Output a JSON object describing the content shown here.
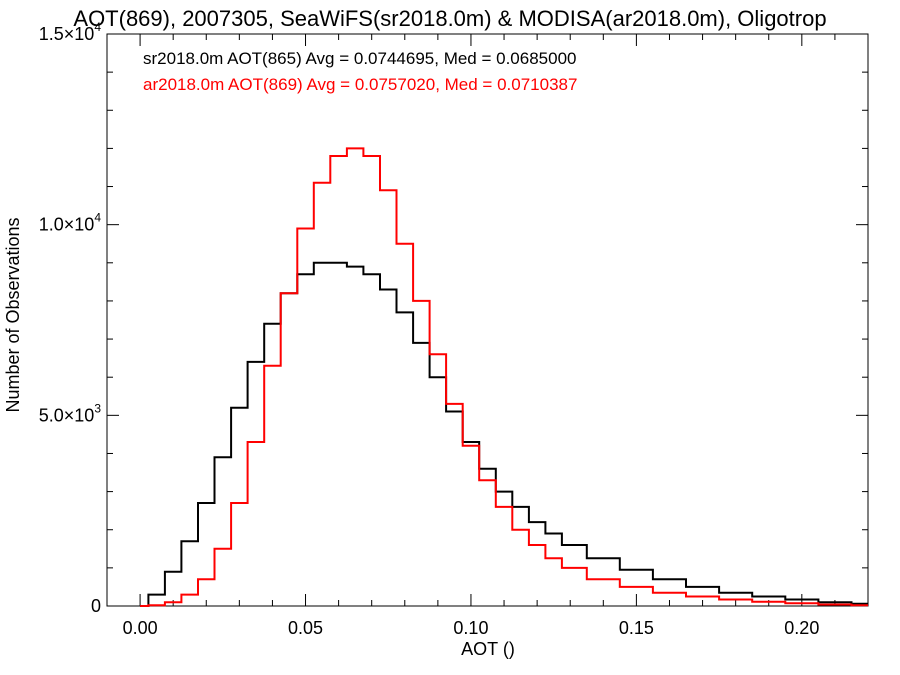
{
  "chart_data": {
    "type": "line",
    "title": "AOT(869), 2007305, SeaWiFS(sr2018.0m) & MODISA(ar2018.0m), Oligotrop",
    "xlabel": "AOT ()",
    "ylabel": "Number of Observations",
    "xlim": [
      -0.01,
      0.22
    ],
    "ylim": [
      0,
      15000
    ],
    "x_ticks": [
      {
        "value": 0.0,
        "label": "0.00"
      },
      {
        "value": 0.05,
        "label": "0.05"
      },
      {
        "value": 0.1,
        "label": "0.10"
      },
      {
        "value": 0.15,
        "label": "0.15"
      },
      {
        "value": 0.2,
        "label": "0.20"
      }
    ],
    "y_ticks": [
      {
        "value": 0,
        "label": "0",
        "exp": ""
      },
      {
        "value": 5000,
        "label": "5.0×10",
        "exp": "3"
      },
      {
        "value": 10000,
        "label": "1.0×10",
        "exp": "4"
      },
      {
        "value": 15000,
        "label": "1.5×10",
        "exp": "4"
      }
    ],
    "grid": false,
    "legend_position": "top-left",
    "series": [
      {
        "name": "sr2018.0m AOT(865) Avg = 0.0744695, Med = 0.0685000",
        "color": "#000000",
        "x": [
          0.0,
          0.005,
          0.01,
          0.015,
          0.02,
          0.025,
          0.03,
          0.035,
          0.04,
          0.045,
          0.05,
          0.055,
          0.06,
          0.065,
          0.07,
          0.075,
          0.08,
          0.085,
          0.09,
          0.095,
          0.1,
          0.105,
          0.11,
          0.115,
          0.12,
          0.125,
          0.13,
          0.14,
          0.15,
          0.16,
          0.17,
          0.18,
          0.19,
          0.2,
          0.21,
          0.22
        ],
        "values": [
          0,
          300,
          900,
          1700,
          2700,
          3900,
          5200,
          6400,
          7400,
          8200,
          8700,
          9000,
          9000,
          8900,
          8700,
          8300,
          7700,
          6900,
          6000,
          5100,
          4300,
          3600,
          3000,
          2600,
          2200,
          1900,
          1600,
          1250,
          950,
          700,
          500,
          350,
          250,
          170,
          100,
          60
        ]
      },
      {
        "name": "ar2018.0m AOT(869) Avg = 0.0757020, Med = 0.0710387",
        "color": "#ff0000",
        "x": [
          0.0,
          0.005,
          0.01,
          0.015,
          0.02,
          0.025,
          0.03,
          0.035,
          0.04,
          0.045,
          0.05,
          0.055,
          0.06,
          0.065,
          0.07,
          0.075,
          0.08,
          0.085,
          0.09,
          0.095,
          0.1,
          0.105,
          0.11,
          0.115,
          0.12,
          0.125,
          0.13,
          0.14,
          0.15,
          0.16,
          0.17,
          0.18,
          0.19,
          0.2,
          0.21,
          0.22
        ],
        "values": [
          0,
          20,
          100,
          300,
          700,
          1500,
          2700,
          4300,
          6300,
          8200,
          9900,
          11100,
          11800,
          12000,
          11800,
          10900,
          9500,
          8000,
          6600,
          5300,
          4200,
          3300,
          2600,
          2000,
          1600,
          1250,
          1000,
          700,
          500,
          350,
          250,
          170,
          110,
          70,
          40,
          20
        ]
      }
    ]
  }
}
